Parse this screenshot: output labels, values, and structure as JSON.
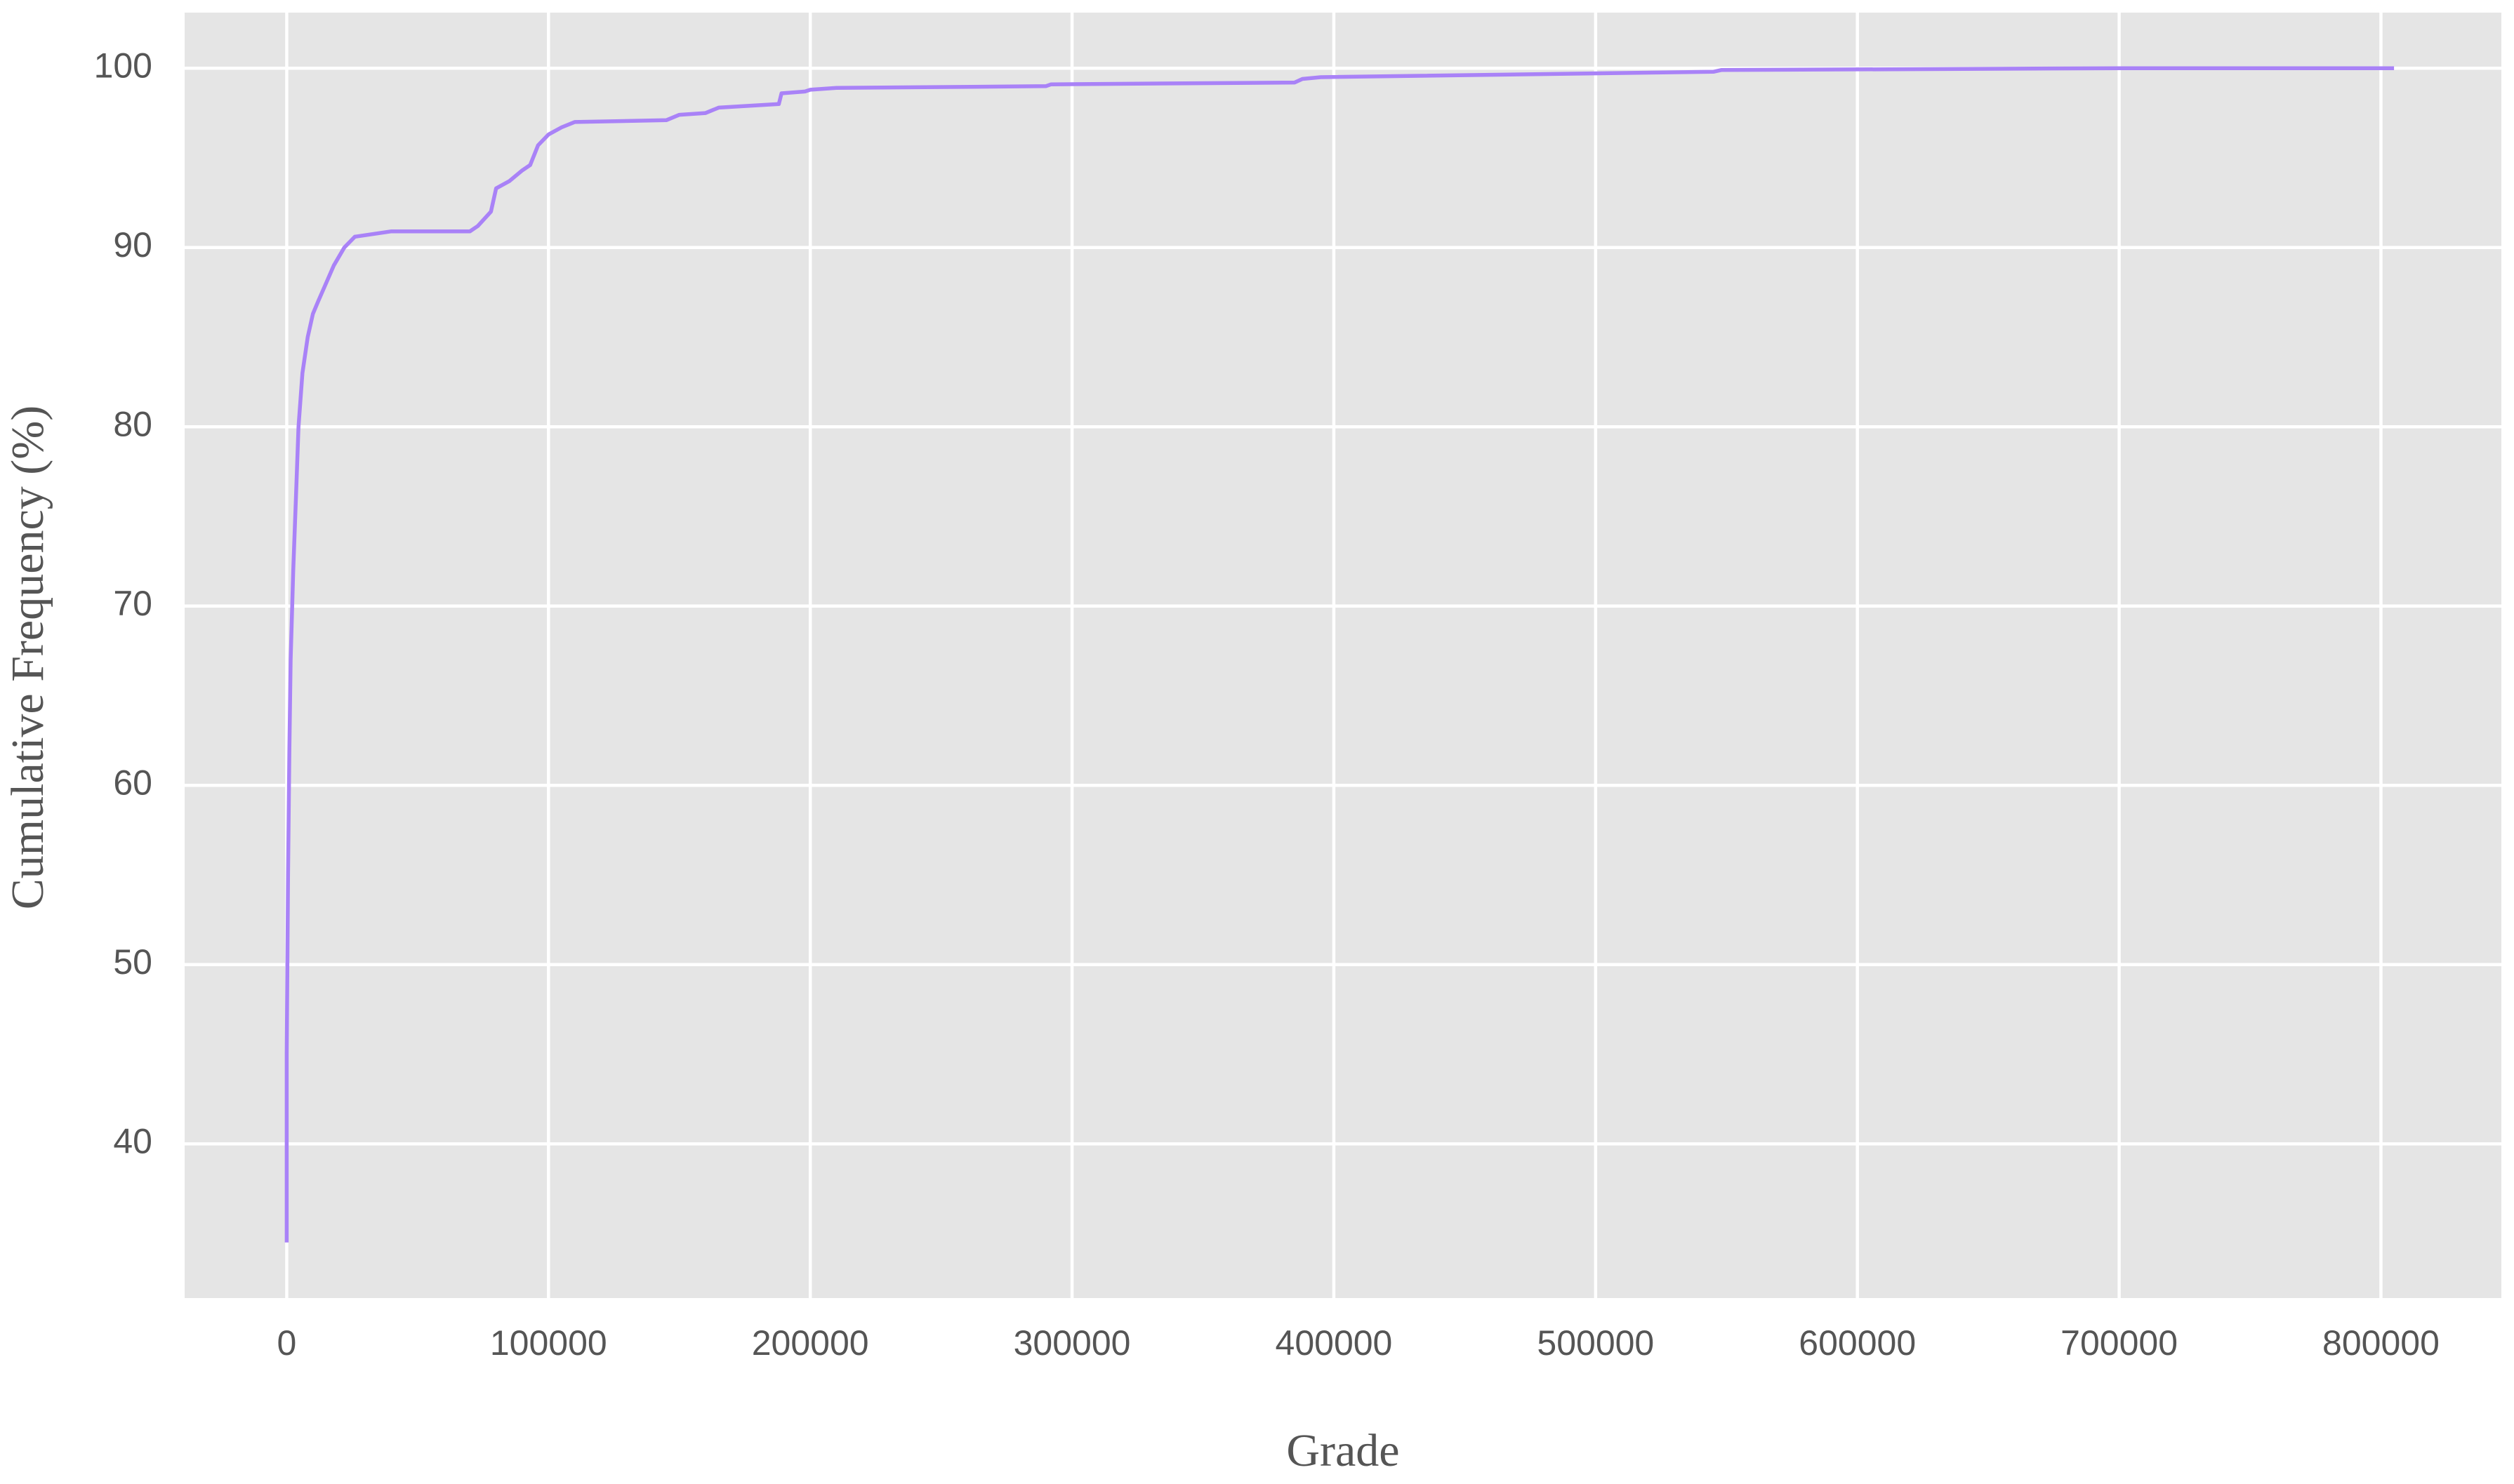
{
  "chart_data": {
    "type": "line",
    "xlabel": "Grade",
    "ylabel": "Cumulative Frequency (%)",
    "x": [
      0,
      0,
      500,
      1000,
      1500,
      2500,
      3500,
      4500,
      6000,
      8000,
      10000,
      12000,
      15000,
      18000,
      22000,
      26000,
      40000,
      70000,
      73000,
      78000,
      80000,
      85000,
      90000,
      93000,
      96000,
      100000,
      105000,
      110000,
      145000,
      150000,
      160000,
      165000,
      188000,
      189000,
      198000,
      200000,
      210000,
      290000,
      292000,
      385000,
      388000,
      395000,
      545000,
      548000,
      700000,
      805000
    ],
    "values": [
      34.5,
      45,
      55,
      62,
      67,
      72,
      76,
      80,
      83,
      85,
      86.3,
      87,
      88,
      89,
      90,
      90.6,
      90.9,
      90.9,
      91.2,
      92,
      93.3,
      93.7,
      94.3,
      94.6,
      95.7,
      96.3,
      96.7,
      97,
      97.1,
      97.4,
      97.5,
      97.8,
      98,
      98.6,
      98.7,
      98.8,
      98.9,
      99,
      99.1,
      99.2,
      99.4,
      99.5,
      99.8,
      99.9,
      100,
      100
    ],
    "color": "#a982f7",
    "xlim": [
      -39000,
      846000
    ],
    "ylim": [
      31.4,
      103.1
    ],
    "xticks": [
      0,
      100000,
      200000,
      300000,
      400000,
      500000,
      600000,
      700000,
      800000
    ],
    "yticks": [
      40,
      50,
      60,
      70,
      80,
      90,
      100
    ],
    "grid": true
  }
}
